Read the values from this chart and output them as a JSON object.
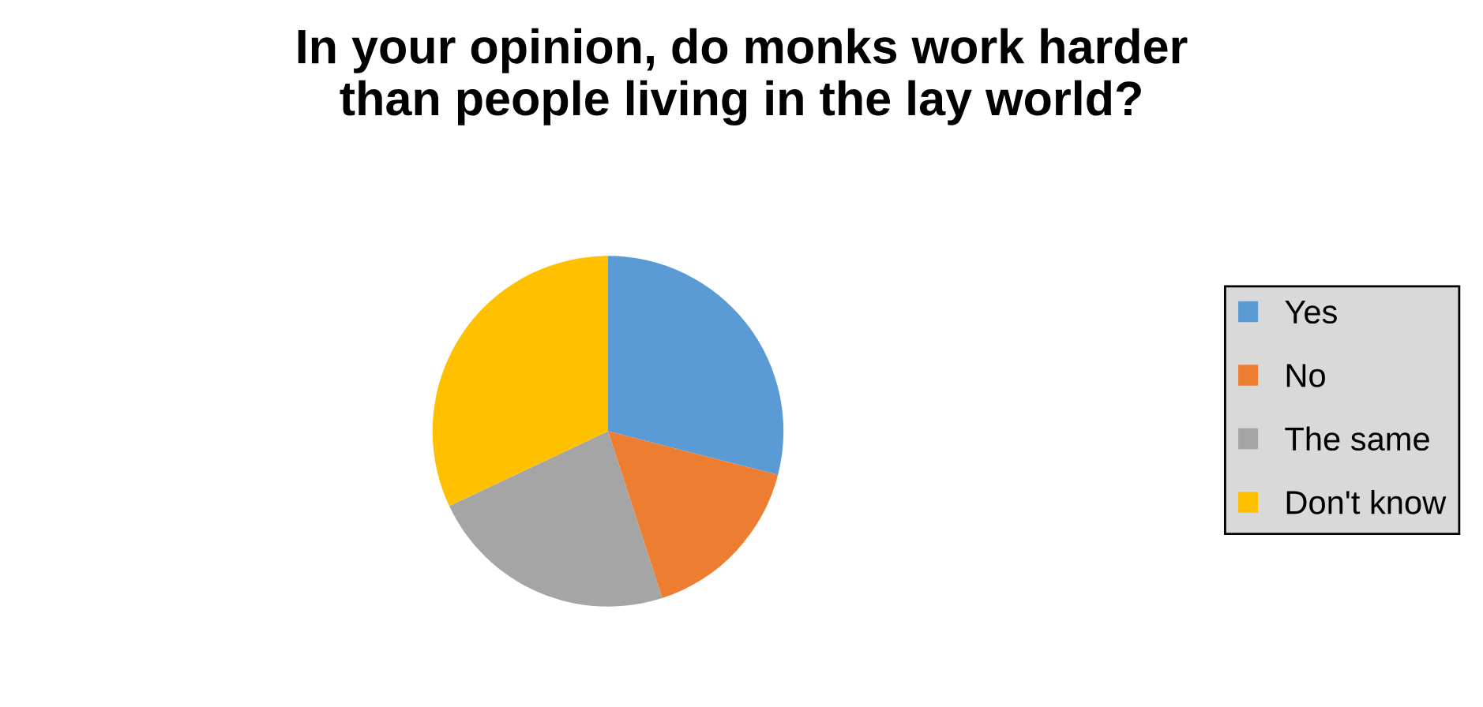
{
  "chart_data": {
    "type": "pie",
    "title": "In your opinion, do monks work harder\nthan people living in the lay world?",
    "categories": [
      "Yes",
      "No",
      "The same",
      "Don't know"
    ],
    "values": [
      29,
      16,
      23,
      32
    ],
    "colors": [
      "#5b9bd5",
      "#ed7d31",
      "#a5a5a5",
      "#ffc000"
    ],
    "legend": "right"
  }
}
